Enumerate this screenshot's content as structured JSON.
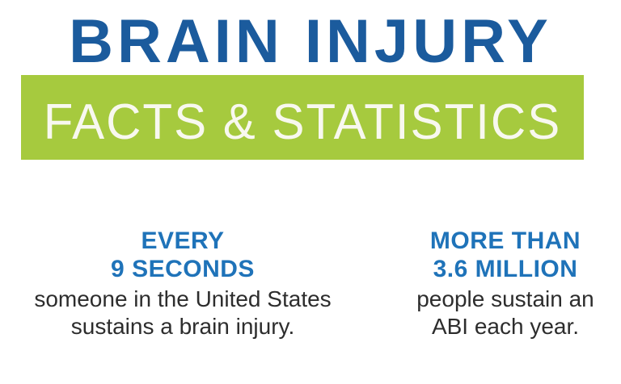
{
  "page": {
    "background_color": "#ffffff"
  },
  "header": {
    "title": "BRAIN INJURY",
    "title_color": "#1b5b9d",
    "subtitle": "FACTS & STATISTICS",
    "subtitle_color": "#f8f8ef",
    "banner_color": "#a6ca3e"
  },
  "colors": {
    "stat_blue": "#1f73b9",
    "body_text": "#2d2d2d"
  },
  "stats": [
    {
      "headline_line1": "EVERY",
      "headline_line2": "9 SECONDS",
      "body_line1": "someone in the United States",
      "body_line2": "sustains a brain injury."
    },
    {
      "headline_line1": "MORE THAN",
      "headline_line2": "3.6 MILLION",
      "body_line1": "people sustain an",
      "body_line2": "ABI each year."
    }
  ]
}
